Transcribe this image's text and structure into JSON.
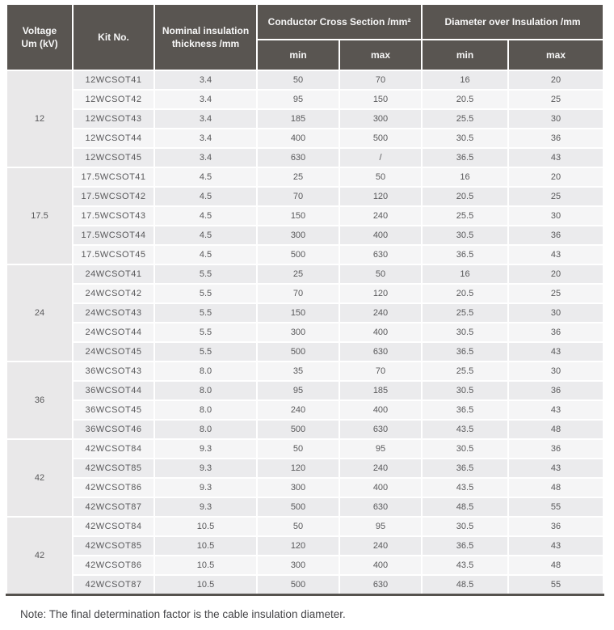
{
  "table": {
    "headers": {
      "voltage": "Voltage\nUm (kV)",
      "kit_no": "Kit No.",
      "nominal_insulation": "Nominal insulation\nthickness /mm",
      "conductor_cross_section": "Conductor Cross Section /mm²",
      "diameter_over_insulation": "Diameter over Insulation /mm",
      "min": "min",
      "max": "max"
    },
    "groups": [
      {
        "voltage": "12",
        "rows": [
          [
            "12WCSOT41",
            "3.4",
            "50",
            "70",
            "16",
            "20"
          ],
          [
            "12WCSOT42",
            "3.4",
            "95",
            "150",
            "20.5",
            "25"
          ],
          [
            "12WCSOT43",
            "3.4",
            "185",
            "300",
            "25.5",
            "30"
          ],
          [
            "12WCSOT44",
            "3.4",
            "400",
            "500",
            "30.5",
            "36"
          ],
          [
            "12WCSOT45",
            "3.4",
            "630",
            "/",
            "36.5",
            "43"
          ]
        ]
      },
      {
        "voltage": "17.5",
        "rows": [
          [
            "17.5WCSOT41",
            "4.5",
            "25",
            "50",
            "16",
            "20"
          ],
          [
            "17.5WCSOT42",
            "4.5",
            "70",
            "120",
            "20.5",
            "25"
          ],
          [
            "17.5WCSOT43",
            "4.5",
            "150",
            "240",
            "25.5",
            "30"
          ],
          [
            "17.5WCSOT44",
            "4.5",
            "300",
            "400",
            "30.5",
            "36"
          ],
          [
            "17.5WCSOT45",
            "4.5",
            "500",
            "630",
            "36.5",
            "43"
          ]
        ]
      },
      {
        "voltage": "24",
        "rows": [
          [
            "24WCSOT41",
            "5.5",
            "25",
            "50",
            "16",
            "20"
          ],
          [
            "24WCSOT42",
            "5.5",
            "70",
            "120",
            "20.5",
            "25"
          ],
          [
            "24WCSOT43",
            "5.5",
            "150",
            "240",
            "25.5",
            "30"
          ],
          [
            "24WCSOT44",
            "5.5",
            "300",
            "400",
            "30.5",
            "36"
          ],
          [
            "24WCSOT45",
            "5.5",
            "500",
            "630",
            "36.5",
            "43"
          ]
        ]
      },
      {
        "voltage": "36",
        "rows": [
          [
            "36WCSOT43",
            "8.0",
            "35",
            "70",
            "25.5",
            "30"
          ],
          [
            "36WCSOT44",
            "8.0",
            "95",
            "185",
            "30.5",
            "36"
          ],
          [
            "36WCSOT45",
            "8.0",
            "240",
            "400",
            "36.5",
            "43"
          ],
          [
            "36WCSOT46",
            "8.0",
            "500",
            "630",
            "43.5",
            "48"
          ]
        ]
      },
      {
        "voltage": "42",
        "rows": [
          [
            "42WCSOT84",
            "9.3",
            "50",
            "95",
            "30.5",
            "36"
          ],
          [
            "42WCSOT85",
            "9.3",
            "120",
            "240",
            "36.5",
            "43"
          ],
          [
            "42WCSOT86",
            "9.3",
            "300",
            "400",
            "43.5",
            "48"
          ],
          [
            "42WCSOT87",
            "9.3",
            "500",
            "630",
            "48.5",
            "55"
          ]
        ]
      },
      {
        "voltage": "42",
        "rows": [
          [
            "42WCSOT84",
            "10.5",
            "50",
            "95",
            "30.5",
            "36"
          ],
          [
            "42WCSOT85",
            "10.5",
            "120",
            "240",
            "36.5",
            "43"
          ],
          [
            "42WCSOT86",
            "10.5",
            "300",
            "400",
            "43.5",
            "48"
          ],
          [
            "42WCSOT87",
            "10.5",
            "500",
            "630",
            "48.5",
            "55"
          ]
        ]
      }
    ]
  },
  "note": "Note: The final determination factor is the cable insulation diameter.",
  "colors": {
    "header_bg": "#595551",
    "header_text": "#f7f7f7",
    "row_gray": "#ebebed",
    "row_light": "#f5f5f6",
    "voltage_bg": "#e9e8e9",
    "border_dark": "#55524e",
    "cell_text": "#59595b",
    "note_text": "#454548"
  }
}
